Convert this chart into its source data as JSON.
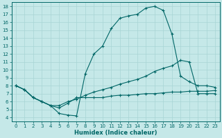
{
  "xlabel": "Humidex (Indice chaleur)",
  "bg_color": "#c5e8e8",
  "grid_color": "#a8d4d4",
  "line_color": "#006666",
  "xlim": [
    -0.5,
    23.5
  ],
  "ylim": [
    3.5,
    18.5
  ],
  "xticks": [
    0,
    1,
    2,
    3,
    4,
    5,
    6,
    7,
    8,
    9,
    10,
    11,
    12,
    13,
    14,
    15,
    16,
    17,
    18,
    19,
    20,
    21,
    22,
    23
  ],
  "yticks": [
    4,
    5,
    6,
    7,
    8,
    9,
    10,
    11,
    12,
    13,
    14,
    15,
    16,
    17,
    18
  ],
  "line1_x": [
    0,
    1,
    2,
    3,
    4,
    5,
    6,
    7,
    8,
    9,
    10,
    11,
    12,
    13,
    14,
    15,
    16,
    17,
    18,
    19,
    20,
    21,
    22,
    23
  ],
  "line1_y": [
    8.0,
    7.5,
    6.5,
    6.0,
    5.5,
    4.5,
    4.3,
    4.2,
    9.5,
    12.0,
    13.0,
    15.2,
    16.5,
    16.8,
    17.0,
    17.8,
    18.0,
    17.5,
    14.5,
    9.2,
    8.5,
    8.0,
    8.0,
    7.8
  ],
  "line2_x": [
    0,
    1,
    2,
    3,
    4,
    5,
    6,
    7,
    8,
    9,
    10,
    11,
    12,
    13,
    14,
    15,
    16,
    17,
    18,
    19,
    20,
    21,
    22,
    23
  ],
  "line2_y": [
    8.0,
    7.5,
    6.5,
    6.0,
    5.5,
    5.5,
    6.0,
    6.3,
    6.8,
    7.2,
    7.5,
    7.8,
    8.2,
    8.5,
    8.8,
    9.2,
    9.8,
    10.2,
    10.5,
    11.2,
    11.0,
    7.0,
    7.0,
    7.0
  ],
  "line3_x": [
    0,
    1,
    2,
    3,
    4,
    5,
    6,
    7,
    8,
    9,
    10,
    11,
    12,
    13,
    14,
    15,
    16,
    17,
    18,
    19,
    20,
    21,
    22,
    23
  ],
  "line3_y": [
    8.0,
    7.5,
    6.5,
    6.0,
    5.5,
    5.2,
    5.8,
    6.5,
    6.5,
    6.5,
    6.5,
    6.7,
    6.8,
    6.8,
    6.9,
    7.0,
    7.0,
    7.1,
    7.2,
    7.2,
    7.3,
    7.3,
    7.3,
    7.4
  ]
}
